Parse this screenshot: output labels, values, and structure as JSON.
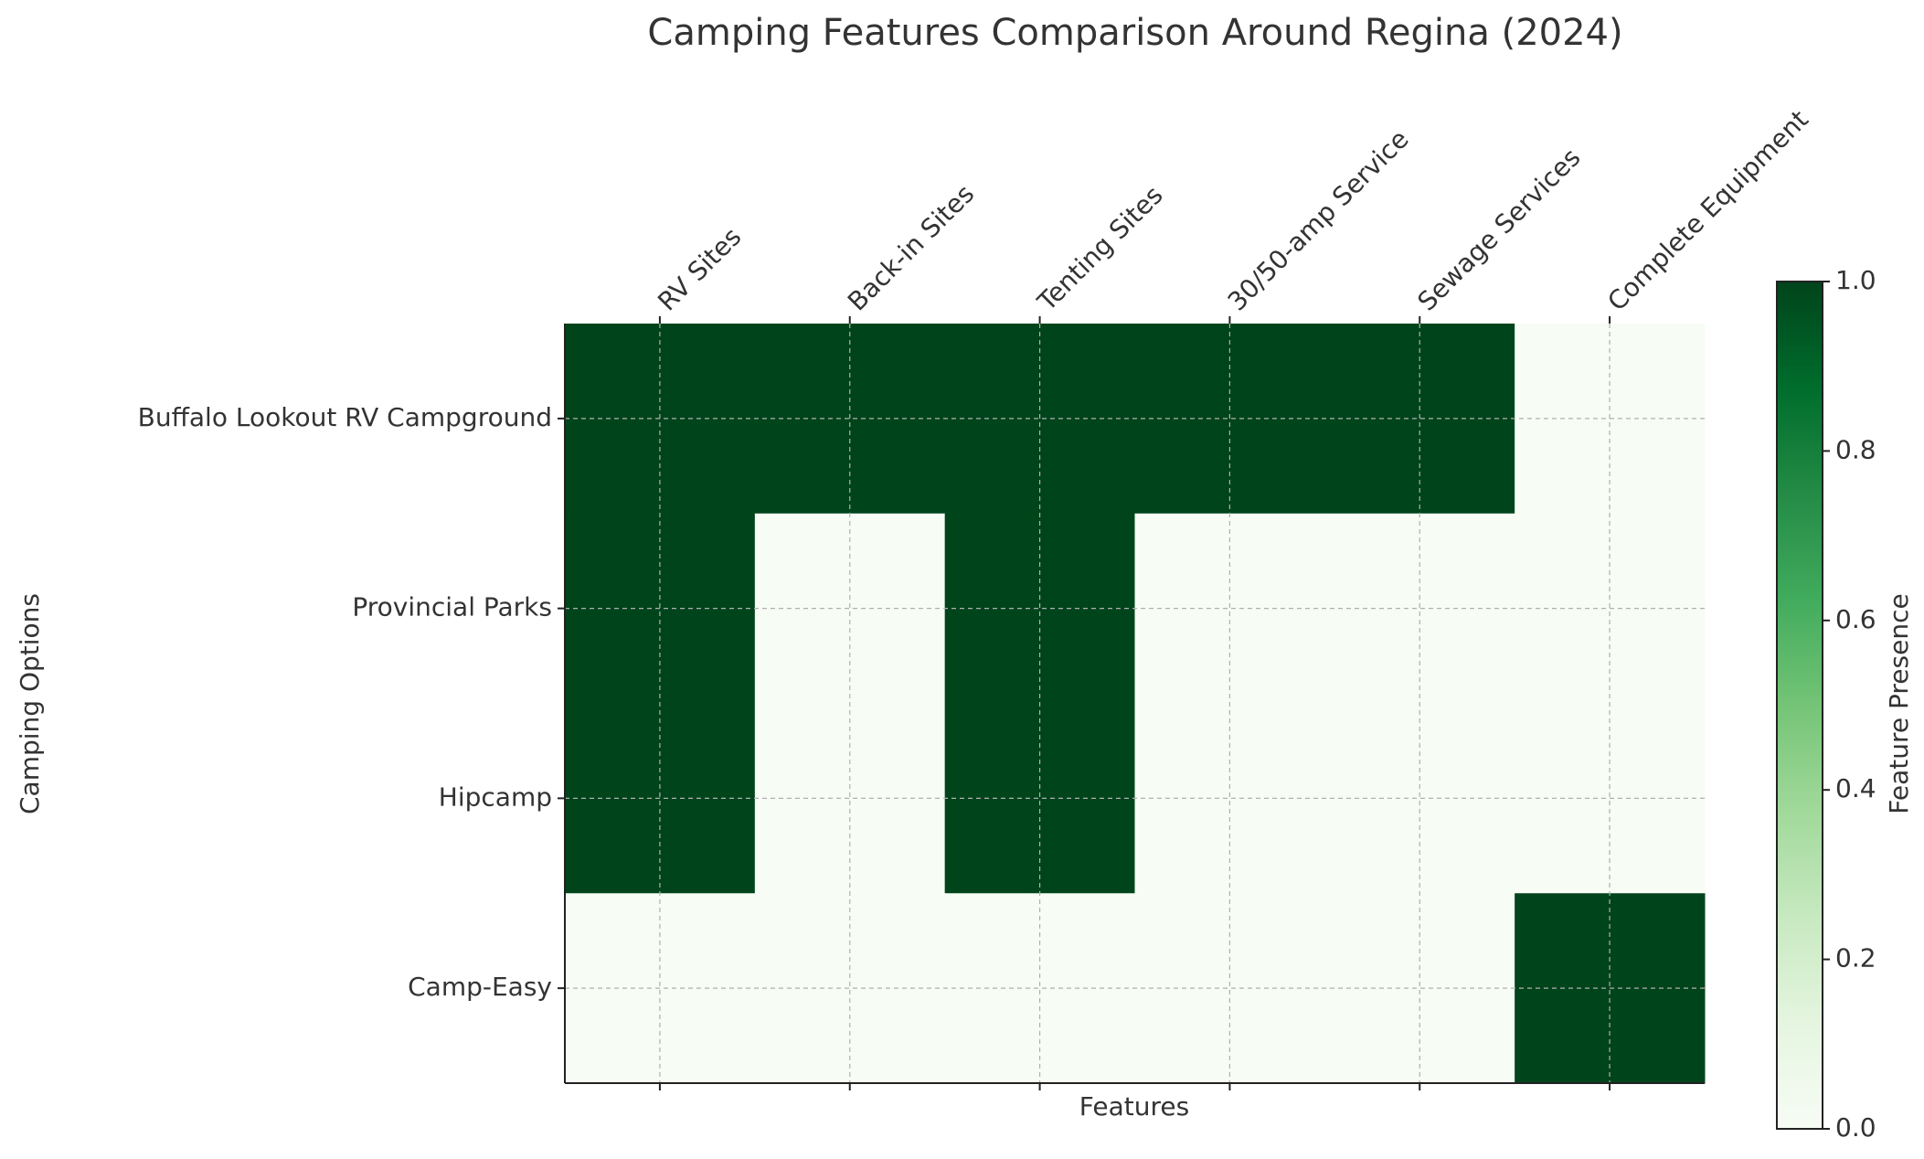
{
  "chart_data": {
    "type": "heatmap",
    "title": "Camping Features Comparison Around Regina (2024)",
    "xlabel": "Features",
    "ylabel": "Camping Options",
    "colorbar_label": "Feature Presence",
    "x": [
      "RV Sites",
      "Back-in Sites",
      "Tenting Sites",
      "30/50-amp Service",
      "Sewage Services",
      "Complete Equipment"
    ],
    "y": [
      "Buffalo Lookout RV Campground",
      "Provincial Parks",
      "Hipcamp",
      "Camp-Easy"
    ],
    "values": [
      [
        1,
        1,
        1,
        1,
        1,
        0
      ],
      [
        1,
        0,
        1,
        0,
        0,
        0
      ],
      [
        1,
        0,
        1,
        0,
        0,
        0
      ],
      [
        0,
        0,
        0,
        0,
        0,
        1
      ]
    ],
    "zlim": [
      0,
      1
    ],
    "zticks": [
      {
        "value": 0,
        "label": "0.0"
      },
      0.2,
      0.4,
      0.6,
      0.8,
      {
        "value": 1,
        "label": "1.0"
      }
    ],
    "colorscale": [
      "#f7fcf5",
      "#e5f5e0",
      "#c7e9c0",
      "#a1d99b",
      "#74c476",
      "#41ab5d",
      "#238b45",
      "#006d2c",
      "#00441b"
    ],
    "grid": true
  }
}
